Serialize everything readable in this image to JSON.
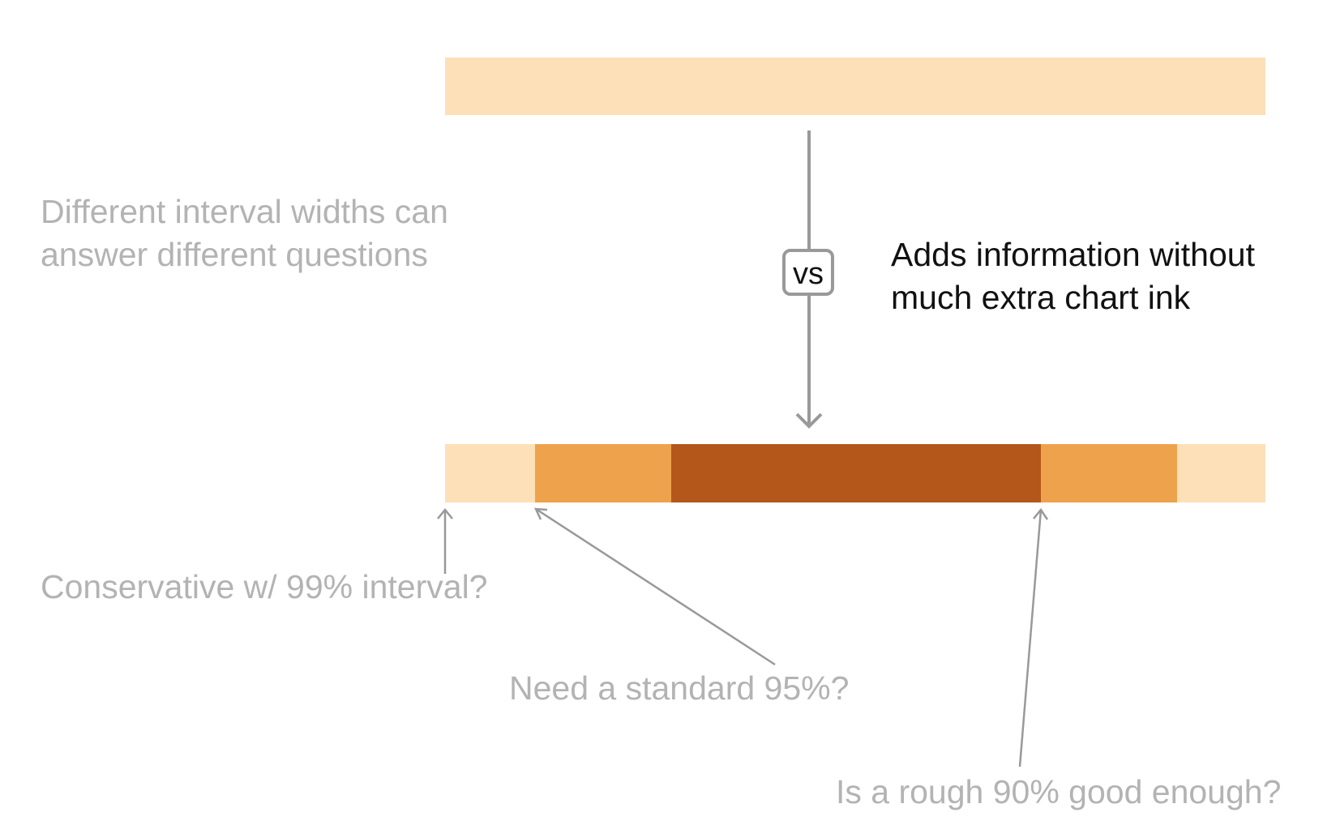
{
  "diagram": {
    "intro_line1": "Different interval widths can",
    "intro_line2": "answer different questions",
    "vs_label": "vs",
    "benefit_line1": "Adds information without",
    "benefit_line2": "much extra chart ink",
    "q_99": "Conservative w/ 99% interval?",
    "q_95": "Need a standard 95%?",
    "q_90": "Is a rough 90% good enough?"
  },
  "colors": {
    "band_99": "#fde0b7",
    "band_95": "#eea24c",
    "band_90": "#b3571a",
    "arrow": "#999999",
    "muted_text": "#b3b3b3",
    "dark_text": "#111111"
  }
}
